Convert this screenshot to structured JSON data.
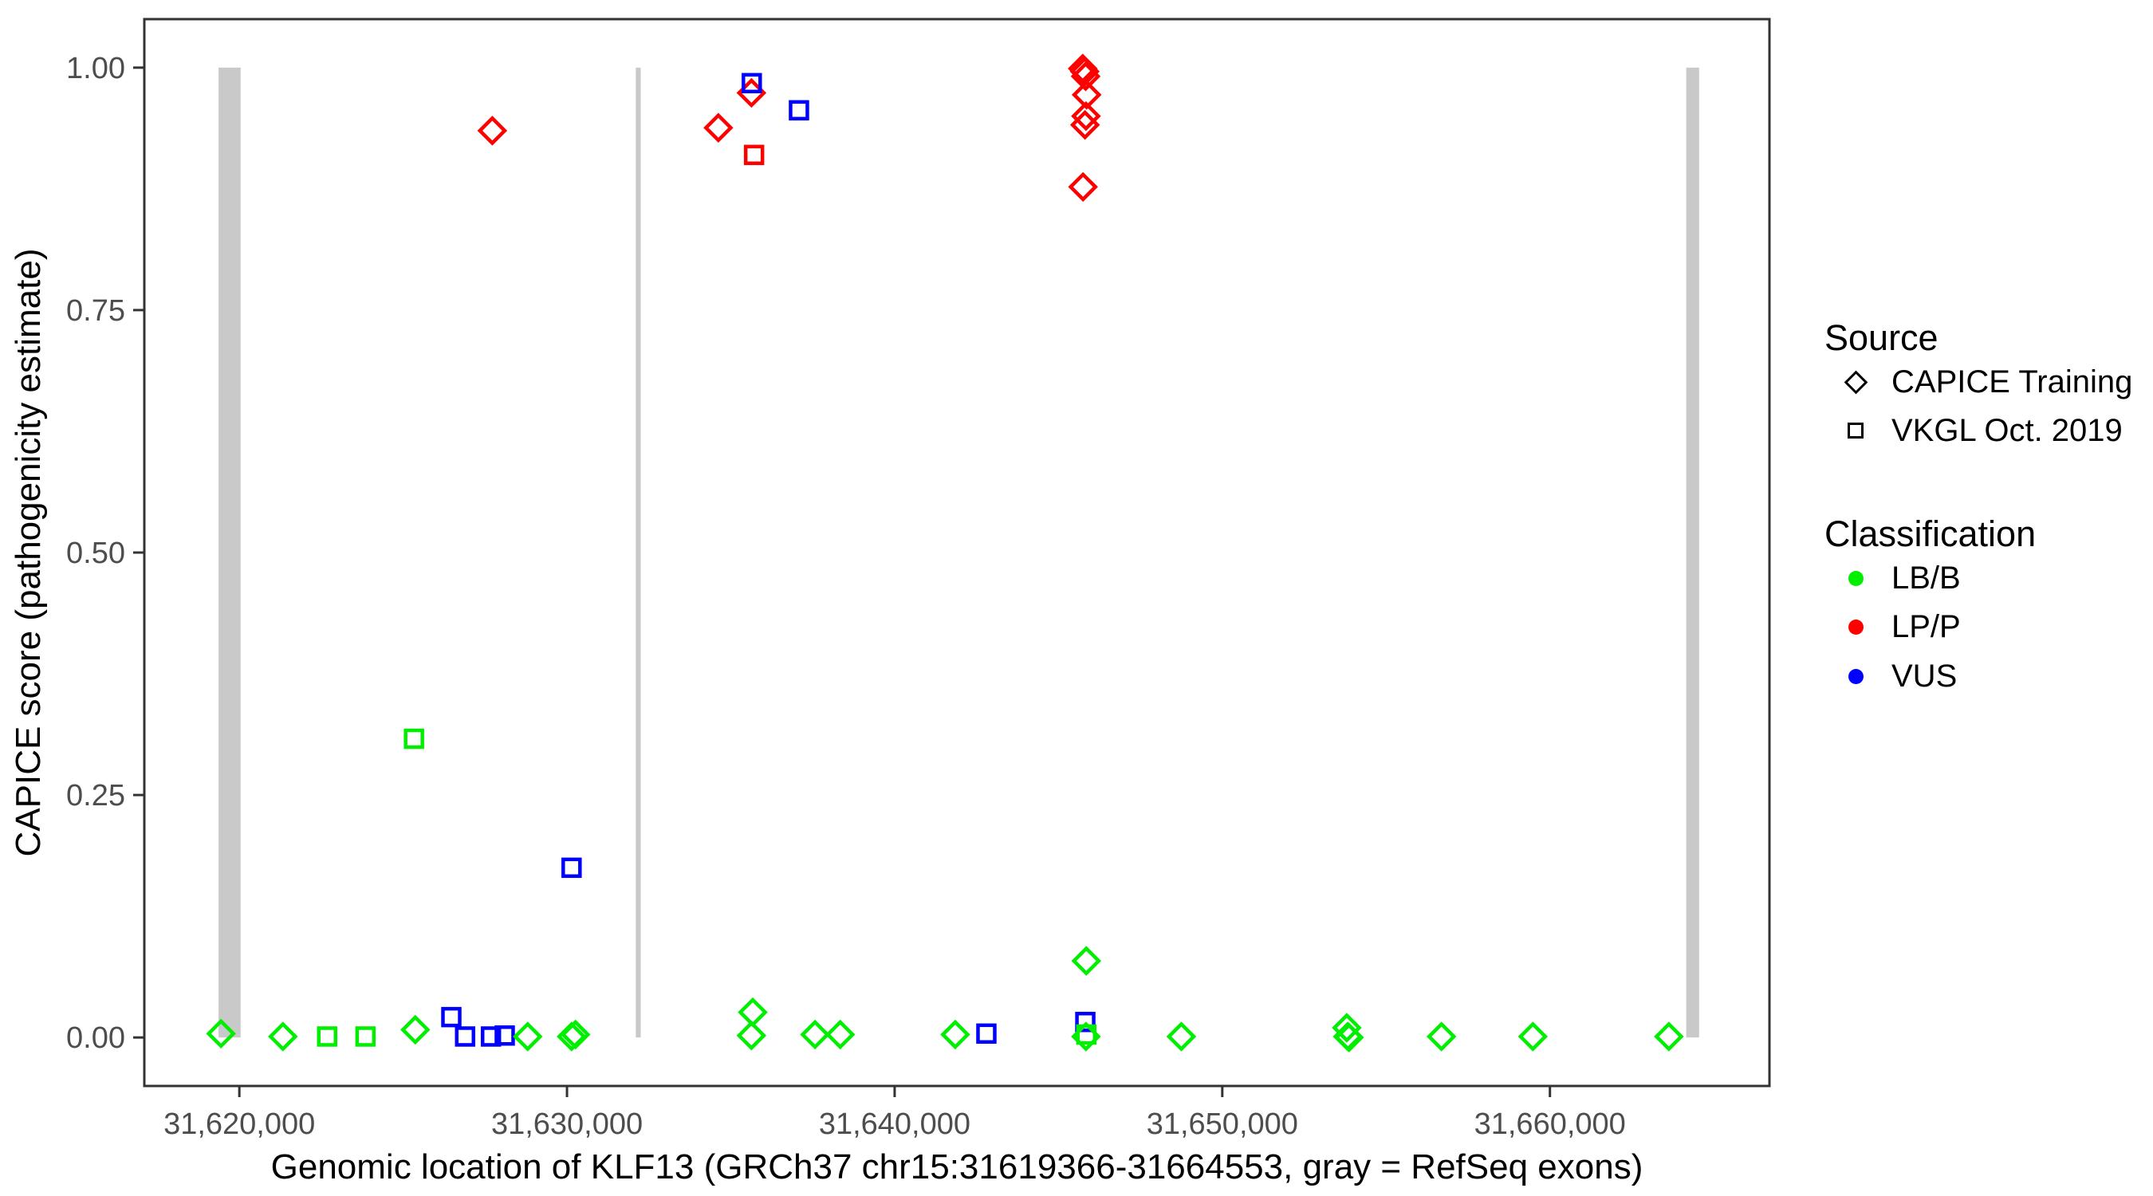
{
  "chart_data": {
    "type": "scatter",
    "title": "",
    "xlabel": "Genomic location of KLF13 (GRCh37 chr15:31619366-31664553, gray = RefSeq exons)",
    "ylabel": "CAPICE score (pathogenicity estimate)",
    "x_domain": [
      31617100,
      31666700
    ],
    "y_domain": [
      -0.05,
      1.05
    ],
    "grid": "off",
    "x_ticks": [
      {
        "value": 31620000,
        "label": "31,620,000"
      },
      {
        "value": 31630000,
        "label": "31,630,000"
      },
      {
        "value": 31640000,
        "label": "31,640,000"
      },
      {
        "value": 31650000,
        "label": "31,650,000"
      },
      {
        "value": 31660000,
        "label": "31,660,000"
      }
    ],
    "y_ticks": [
      {
        "value": 0.0,
        "label": "0.00"
      },
      {
        "value": 0.25,
        "label": "0.25"
      },
      {
        "value": 0.5,
        "label": "0.50"
      },
      {
        "value": 0.75,
        "label": "0.75"
      },
      {
        "value": 1.0,
        "label": "1.00"
      }
    ],
    "exons": {
      "color": "#C9C9C9",
      "regions": [
        {
          "start": 31619366,
          "end": 31620040
        },
        {
          "start": 31632100,
          "end": 31632250
        },
        {
          "start": 31664160,
          "end": 31664553
        }
      ]
    },
    "legend": {
      "position": "right",
      "source": {
        "title": "Source",
        "items": [
          {
            "label": "CAPICE Training",
            "shape": "diamond",
            "icon": "diamond-outline-icon"
          },
          {
            "label": "VKGL Oct. 2019",
            "shape": "square",
            "icon": "square-outline-icon"
          }
        ]
      },
      "classification": {
        "title": "Classification",
        "items": [
          {
            "label": "LB/B",
            "color": "#00EE00",
            "icon": "green-dot-icon"
          },
          {
            "label": "LP/P",
            "color": "#FF0000",
            "icon": "red-dot-icon"
          },
          {
            "label": "VUS",
            "color": "#0000FF",
            "icon": "blue-dot-icon"
          }
        ]
      }
    },
    "shape_by_source": {
      "CAPICE Training": "diamond",
      "VKGL Oct. 2019": "square"
    },
    "color_by_classification": {
      "LB/B": "#00EE00",
      "LP/P": "#FF0000",
      "VUS": "#0000FF"
    },
    "points": [
      {
        "x": 31619440,
        "y": 0.004,
        "source": "CAPICE Training",
        "classification": "LB/B"
      },
      {
        "x": 31621330,
        "y": 0.001,
        "source": "CAPICE Training",
        "classification": "LB/B"
      },
      {
        "x": 31622680,
        "y": 0.001,
        "source": "VKGL Oct. 2019",
        "classification": "LB/B"
      },
      {
        "x": 31623850,
        "y": 0.001,
        "source": "VKGL Oct. 2019",
        "classification": "LB/B"
      },
      {
        "x": 31625330,
        "y": 0.308,
        "source": "VKGL Oct. 2019",
        "classification": "LB/B"
      },
      {
        "x": 31625370,
        "y": 0.008,
        "source": "CAPICE Training",
        "classification": "LB/B"
      },
      {
        "x": 31626470,
        "y": 0.021,
        "source": "VKGL Oct. 2019",
        "classification": "VUS"
      },
      {
        "x": 31626890,
        "y": 0.001,
        "source": "VKGL Oct. 2019",
        "classification": "VUS"
      },
      {
        "x": 31627680,
        "y": 0.001,
        "source": "VKGL Oct. 2019",
        "classification": "VUS"
      },
      {
        "x": 31627720,
        "y": 0.935,
        "source": "CAPICE Training",
        "classification": "LP/P"
      },
      {
        "x": 31628100,
        "y": 0.002,
        "source": "VKGL Oct. 2019",
        "classification": "VUS"
      },
      {
        "x": 31628800,
        "y": 0.001,
        "source": "CAPICE Training",
        "classification": "LB/B"
      },
      {
        "x": 31630140,
        "y": 0.001,
        "source": "CAPICE Training",
        "classification": "LB/B"
      },
      {
        "x": 31630260,
        "y": 0.003,
        "source": "CAPICE Training",
        "classification": "LB/B"
      },
      {
        "x": 31630140,
        "y": 0.175,
        "source": "VKGL Oct. 2019",
        "classification": "VUS"
      },
      {
        "x": 31634620,
        "y": 0.938,
        "source": "CAPICE Training",
        "classification": "LP/P"
      },
      {
        "x": 31635630,
        "y": 0.974,
        "source": "CAPICE Training",
        "classification": "LP/P"
      },
      {
        "x": 31635640,
        "y": 0.984,
        "source": "VKGL Oct. 2019",
        "classification": "VUS"
      },
      {
        "x": 31635710,
        "y": 0.91,
        "source": "VKGL Oct. 2019",
        "classification": "LP/P"
      },
      {
        "x": 31635670,
        "y": 0.026,
        "source": "CAPICE Training",
        "classification": "LB/B"
      },
      {
        "x": 31635630,
        "y": 0.002,
        "source": "CAPICE Training",
        "classification": "LB/B"
      },
      {
        "x": 31637080,
        "y": 0.956,
        "source": "VKGL Oct. 2019",
        "classification": "VUS"
      },
      {
        "x": 31637570,
        "y": 0.003,
        "source": "CAPICE Training",
        "classification": "LB/B"
      },
      {
        "x": 31638340,
        "y": 0.003,
        "source": "CAPICE Training",
        "classification": "LB/B"
      },
      {
        "x": 31641850,
        "y": 0.003,
        "source": "CAPICE Training",
        "classification": "LB/B"
      },
      {
        "x": 31642800,
        "y": 0.004,
        "source": "VKGL Oct. 2019",
        "classification": "VUS"
      },
      {
        "x": 31645740,
        "y": 0.999,
        "source": "CAPICE Training",
        "classification": "LP/P"
      },
      {
        "x": 31645800,
        "y": 0.996,
        "source": "CAPICE Training",
        "classification": "LP/P"
      },
      {
        "x": 31645830,
        "y": 0.991,
        "source": "CAPICE Training",
        "classification": "LP/P"
      },
      {
        "x": 31645860,
        "y": 0.972,
        "source": "CAPICE Training",
        "classification": "LP/P"
      },
      {
        "x": 31645840,
        "y": 0.95,
        "source": "CAPICE Training",
        "classification": "LP/P"
      },
      {
        "x": 31645810,
        "y": 0.941,
        "source": "CAPICE Training",
        "classification": "LP/P"
      },
      {
        "x": 31645750,
        "y": 0.877,
        "source": "CAPICE Training",
        "classification": "LP/P"
      },
      {
        "x": 31645850,
        "y": 0.079,
        "source": "CAPICE Training",
        "classification": "LB/B"
      },
      {
        "x": 31645820,
        "y": 0.016,
        "source": "VKGL Oct. 2019",
        "classification": "VUS"
      },
      {
        "x": 31645850,
        "y": 0.003,
        "source": "VKGL Oct. 2019",
        "classification": "LB/B"
      },
      {
        "x": 31645840,
        "y": 0.001,
        "source": "CAPICE Training",
        "classification": "LB/B"
      },
      {
        "x": 31648750,
        "y": 0.001,
        "source": "CAPICE Training",
        "classification": "LB/B"
      },
      {
        "x": 31653800,
        "y": 0.01,
        "source": "CAPICE Training",
        "classification": "LB/B"
      },
      {
        "x": 31653830,
        "y": 0.001,
        "source": "CAPICE Training",
        "classification": "LB/B"
      },
      {
        "x": 31653870,
        "y": 0.0,
        "source": "CAPICE Training",
        "classification": "LB/B"
      },
      {
        "x": 31656690,
        "y": 0.001,
        "source": "CAPICE Training",
        "classification": "LB/B"
      },
      {
        "x": 31659480,
        "y": 0.001,
        "source": "CAPICE Training",
        "classification": "LB/B"
      },
      {
        "x": 31663630,
        "y": 0.001,
        "source": "CAPICE Training",
        "classification": "LB/B"
      }
    ]
  }
}
